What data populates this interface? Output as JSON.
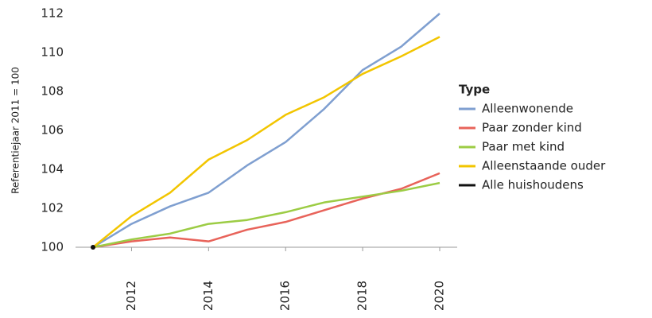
{
  "chart_data": {
    "type": "line",
    "y_label": "Referentiejaar 2011 = 100",
    "legend_title": "Type",
    "legend_position": "right",
    "x": [
      2011,
      2012,
      2013,
      2014,
      2015,
      2016,
      2017,
      2018,
      2019,
      2020
    ],
    "xlim": [
      2011,
      2020
    ],
    "xticks": [
      2012,
      2014,
      2016,
      2018,
      2020
    ],
    "ylim": [
      100,
      112
    ],
    "yticks": [
      100,
      102,
      104,
      106,
      108,
      110,
      112
    ],
    "series": [
      {
        "name": "Alleenwonende",
        "color": "#7f9fd0",
        "values": [
          100,
          101.2,
          102.1,
          102.8,
          104.2,
          105.4,
          107.1,
          109.1,
          110.3,
          112
        ]
      },
      {
        "name": "Paar zonder kind",
        "color": "#e8635a",
        "values": [
          100,
          100.3,
          100.5,
          100.3,
          100.9,
          101.3,
          101.9,
          102.5,
          103,
          103.8
        ]
      },
      {
        "name": "Paar met kind",
        "color": "#9ccc44",
        "values": [
          100,
          100.4,
          100.7,
          101.2,
          101.4,
          101.8,
          102.3,
          102.6,
          102.9,
          103.3
        ]
      },
      {
        "name": "Alleenstaande ouder",
        "color": "#f2c500",
        "values": [
          100,
          101.6,
          102.8,
          104.5,
          105.5,
          106.8,
          107.7,
          108.9,
          109.8,
          110.8
        ]
      },
      {
        "name": "Alle huishoudens",
        "color": "#111111",
        "values": [
          100,
          null,
          null,
          null,
          null,
          null,
          null,
          null,
          null,
          null
        ]
      }
    ]
  }
}
